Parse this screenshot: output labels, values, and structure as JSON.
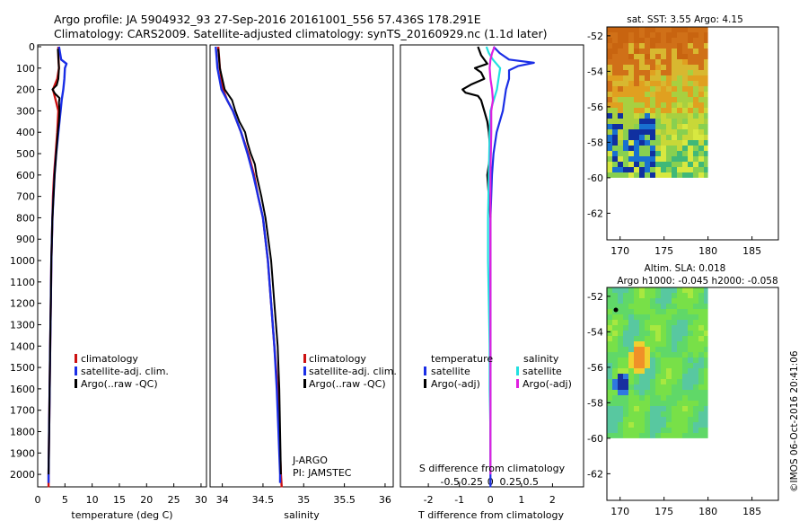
{
  "header": {
    "line1": "Argo profile: JA 5904932_93 27-Sep-2016 20161001_556 57.436S 178.291E",
    "line2": "Climatology: CARS2009. Satellite-adjusted climatology: synTS_20160929.nc (1.1d later)"
  },
  "colors": {
    "climatology": "#cc1111",
    "satellite": "#1a2ee6",
    "argo": "#000000",
    "satellite_salinity": "#22e0e0",
    "argo_salinity": "#e020e0"
  },
  "panels": {
    "temperature": {
      "xlabel": "temperature (deg C)",
      "legend": [
        "climatology",
        "satellite-adj. clim.",
        "Argo(..raw -QC)"
      ]
    },
    "salinity": {
      "xlabel": "salinity",
      "legend": [
        "climatology",
        "satellite-adj. clim.",
        "Argo(..raw -QC)"
      ],
      "annotation1": "J-ARGO",
      "annotation2": "PI: JAMSTEC"
    },
    "difference": {
      "xlabel": "T difference from climatology",
      "top_label": "S difference from climatology",
      "legend_head_t": "temperature",
      "legend_head_s": "salinity",
      "legend": [
        "satellite",
        "Argo(-adj)",
        "satellite",
        "Argo(-adj)"
      ]
    },
    "sst_map": {
      "title": "sat. SST: 3.55  Argo: 4.15"
    },
    "sla_map": {
      "title1": "Altim. SLA: 0.018",
      "title2": "Argo h1000: -0.045  h2000: -0.058"
    }
  },
  "footer": {
    "stamp": "©IMOS 06-Oct-2016 20:41:06"
  },
  "chart_data": [
    {
      "type": "line",
      "name": "temperature profile",
      "xlabel": "temperature (deg C)",
      "ylabel": "",
      "xlim": [
        0,
        31
      ],
      "ylim": [
        2050,
        0
      ],
      "xticks": [
        0,
        5,
        10,
        15,
        20,
        25,
        30
      ],
      "yticks": [
        0,
        100,
        200,
        300,
        400,
        500,
        600,
        700,
        800,
        900,
        1000,
        1100,
        1200,
        1300,
        1400,
        1500,
        1600,
        1700,
        1800,
        1900,
        2000
      ],
      "series": [
        {
          "name": "climatology",
          "depth": [
            0,
            50,
            100,
            150,
            200,
            250,
            300,
            400,
            500,
            600,
            700,
            800,
            1000,
            1200,
            1400,
            1600,
            1800,
            2000,
            2060
          ],
          "values": [
            3.8,
            3.8,
            3.9,
            3.6,
            2.8,
            3.3,
            3.8,
            3.6,
            3.3,
            3.0,
            2.8,
            2.7,
            2.5,
            2.4,
            2.3,
            2.2,
            2.1,
            2.0,
            2.0
          ]
        },
        {
          "name": "satellite-adj. clim.",
          "depth": [
            0,
            30,
            60,
            80,
            100,
            150,
            200,
            250,
            300,
            400,
            500,
            600,
            700,
            800,
            1000,
            1200,
            1400,
            1600,
            1800,
            2000,
            2040
          ],
          "values": [
            3.9,
            4.1,
            4.3,
            5.3,
            5.0,
            4.9,
            4.7,
            4.4,
            4.2,
            3.8,
            3.4,
            3.1,
            2.9,
            2.7,
            2.5,
            2.4,
            2.3,
            2.2,
            2.1,
            2.0,
            2.0
          ]
        },
        {
          "name": "Argo(..raw -QC)",
          "depth": [
            10,
            50,
            100,
            150,
            180,
            200,
            220,
            240,
            260,
            300,
            350,
            400,
            500,
            600,
            700,
            800,
            1000,
            1200,
            1400,
            1600,
            1800,
            2000
          ],
          "values": [
            3.7,
            3.8,
            3.9,
            3.8,
            3.5,
            2.7,
            3.2,
            4.0,
            3.9,
            4.0,
            3.9,
            3.7,
            3.4,
            3.1,
            2.9,
            2.7,
            2.5,
            2.4,
            2.3,
            2.2,
            2.1,
            2.0
          ]
        }
      ]
    },
    {
      "type": "line",
      "name": "salinity profile",
      "xlabel": "salinity",
      "ylabel": "",
      "xlim": [
        33.85,
        36.1
      ],
      "ylim": [
        2050,
        0
      ],
      "xticks": [
        34,
        34.5,
        35,
        35.5,
        36
      ],
      "series": [
        {
          "name": "climatology",
          "depth": [
            0,
            50,
            100,
            200,
            250,
            300,
            400,
            500,
            600,
            700,
            800,
            1000,
            1200,
            1400,
            1600,
            1800,
            2000,
            2060
          ],
          "values": [
            33.95,
            33.96,
            33.97,
            34.01,
            34.06,
            34.13,
            34.23,
            34.32,
            34.39,
            34.44,
            34.5,
            34.56,
            34.6,
            34.64,
            34.68,
            34.7,
            34.72,
            34.73
          ]
        },
        {
          "name": "satellite-adj. clim.",
          "depth": [
            0,
            50,
            100,
            200,
            250,
            300,
            400,
            500,
            600,
            700,
            800,
            1000,
            1200,
            1400,
            1600,
            1800,
            2000,
            2040
          ],
          "values": [
            33.92,
            33.93,
            33.94,
            33.99,
            34.06,
            34.13,
            34.23,
            34.31,
            34.38,
            34.44,
            34.5,
            34.56,
            34.6,
            34.64,
            34.67,
            34.69,
            34.71,
            34.71
          ]
        },
        {
          "name": "Argo(..raw -QC)",
          "depth": [
            10,
            50,
            100,
            150,
            200,
            250,
            300,
            350,
            400,
            450,
            500,
            550,
            600,
            700,
            800,
            1000,
            1200,
            1400,
            1600,
            1800,
            2000
          ],
          "values": [
            33.95,
            33.96,
            33.97,
            34.0,
            34.03,
            34.12,
            34.16,
            34.21,
            34.28,
            34.31,
            34.35,
            34.4,
            34.42,
            34.48,
            34.53,
            34.6,
            34.64,
            34.68,
            34.7,
            34.71,
            34.72
          ]
        }
      ]
    },
    {
      "type": "line",
      "name": "difference from climatology",
      "xlabel": "T difference from climatology",
      "top_label": "S difference from climatology",
      "xlim": [
        -2.9,
        3.0
      ],
      "ylim": [
        2050,
        0
      ],
      "xticks": [
        -2,
        -1,
        0,
        1,
        2
      ],
      "sticks": [
        -0.5,
        -0.25,
        0,
        0.25,
        0.5
      ],
      "series": [
        {
          "name": "satellite (temperature)",
          "depth": [
            0,
            30,
            60,
            75,
            90,
            110,
            150,
            200,
            300,
            400,
            500,
            600,
            800,
            1000,
            1400,
            1800,
            2000,
            2060
          ],
          "values": [
            0.1,
            0.3,
            0.6,
            1.4,
            0.9,
            0.6,
            0.6,
            0.5,
            0.4,
            0.2,
            0.1,
            0.05,
            0.0,
            0.0,
            0.0,
            0.0,
            0.0,
            0.0
          ]
        },
        {
          "name": "Argo(-adj) (temperature)",
          "depth": [
            0,
            40,
            80,
            100,
            120,
            150,
            175,
            200,
            215,
            230,
            250,
            300,
            350,
            400,
            500,
            600,
            700,
            800
          ],
          "values": [
            -0.4,
            -0.3,
            -0.1,
            -0.5,
            -0.3,
            -0.2,
            -0.6,
            -0.9,
            -0.8,
            -0.4,
            -0.3,
            -0.2,
            -0.1,
            -0.05,
            0.0,
            -0.1,
            -0.05,
            0.0
          ]
        },
        {
          "name": "satellite (salinity)",
          "depth": [
            0,
            30,
            60,
            100,
            150,
            200,
            250,
            300,
            400,
            600,
            800,
            1000,
            1200,
            1400,
            1600,
            1800,
            2000
          ],
          "values": [
            -0.05,
            -0.02,
            0.03,
            0.12,
            0.1,
            0.08,
            0.04,
            0.0,
            -0.01,
            -0.02,
            -0.03,
            -0.03,
            -0.02,
            -0.01,
            -0.01,
            0.0,
            0.0
          ]
        },
        {
          "name": "Argo(-adj) (salinity)",
          "depth": [
            0,
            30,
            60,
            100,
            150,
            200,
            250,
            300,
            400,
            600,
            800,
            1000,
            1200,
            1400,
            1600,
            1800,
            2000
          ],
          "values": [
            0.05,
            0.02,
            0.0,
            -0.01,
            0.0,
            0.02,
            0.03,
            0.01,
            0.01,
            0.0,
            0.0,
            0.0,
            0.0,
            0.0,
            0.0,
            0.0,
            0.0
          ]
        }
      ]
    },
    {
      "type": "heatmap",
      "name": "sat. SST map",
      "xlim": [
        168.5,
        188
      ],
      "ylim": [
        -63.5,
        -51.5
      ],
      "xticks": [
        170,
        175,
        180,
        185
      ],
      "yticks": [
        -52,
        -54,
        -56,
        -58,
        -60,
        -62
      ],
      "data_extent": {
        "lon": [
          168.5,
          180
        ],
        "lat": [
          -60,
          -51.5
        ]
      }
    },
    {
      "type": "heatmap",
      "name": "altimetry SLA map",
      "xlim": [
        168.5,
        188
      ],
      "ylim": [
        -63.5,
        -51.5
      ],
      "xticks": [
        170,
        175,
        180,
        185
      ],
      "yticks": [
        -52,
        -54,
        -56,
        -58,
        -60,
        -62
      ],
      "data_extent": {
        "lon": [
          168.5,
          180
        ],
        "lat": [
          -60,
          -51.5
        ]
      }
    }
  ]
}
